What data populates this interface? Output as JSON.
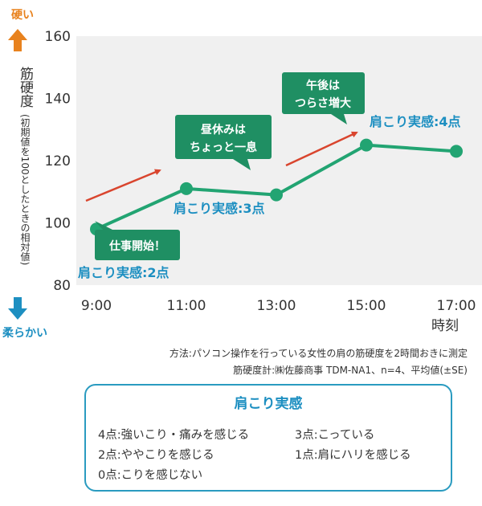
{
  "chart_data": {
    "type": "line",
    "ylabel_main": "筋硬度",
    "ylabel_sub": "(初期値を100としたときの相対値)",
    "xlabel": "時刻",
    "top_label": "硬い",
    "bottom_label": "柔らかい",
    "ylim": [
      80,
      160
    ],
    "yticks": [
      80,
      100,
      120,
      140,
      160
    ],
    "xlim": [
      9,
      17.6
    ],
    "xticks": [
      9,
      11,
      13,
      15,
      17
    ],
    "xtick_labels": [
      "9:00",
      "11:00",
      "13:00",
      "15:00",
      "17:00"
    ],
    "grid": false,
    "series": [
      {
        "color": "#22a472",
        "x": [
          9,
          11,
          13,
          15,
          17
        ],
        "values": [
          98,
          111,
          109,
          125,
          123
        ]
      }
    ],
    "annotations": {
      "stiffness_2": "肩こり実感:2点",
      "stiffness_3": "肩こり実感:3点",
      "stiffness_4": "肩こり実感:4点",
      "callout_work": "仕事開始！",
      "callout_lunch_1": "昼休みは",
      "callout_lunch_2": "ちょっと一息",
      "callout_pm_1": "午後は",
      "callout_pm_2": "つらさ増大"
    }
  },
  "method_line1": "方法:パソコン操作を行っている女性の肩の筋硬度を2時間おきに測定",
  "method_line2": "筋硬度計:㈱佐藤商事 TDM-NA1、n=4、平均値(±SE)",
  "legend": {
    "title": "肩こり実感",
    "items": [
      "4点:強いこり・痛みを感じる",
      "3点:こっている",
      "2点:ややこりを感じる",
      "1点:肩にハリを感じる",
      "0点:こりを感じない"
    ]
  },
  "colors": {
    "line": "#22a472",
    "callout": "#1f8f63",
    "arrow_red": "#d9452e",
    "hard": "#e8821e",
    "soft": "#1d8fc1",
    "plot_bg": "#f0f0f0"
  }
}
